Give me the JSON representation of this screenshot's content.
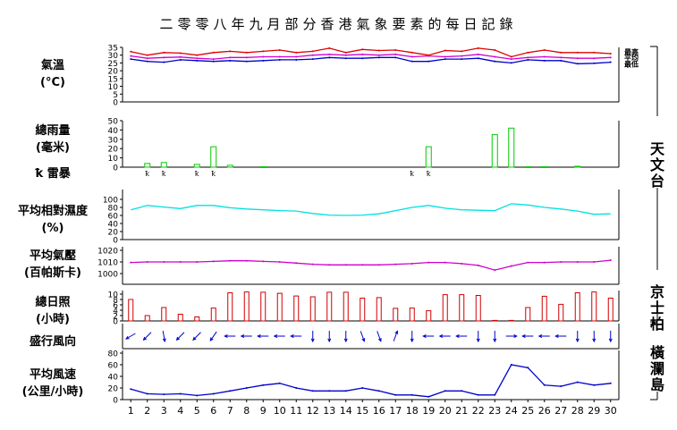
{
  "title": "二零零八年九月部分香港氣象要素的每日記錄",
  "labels": {
    "temp": [
      "氣溫",
      "(°C)"
    ],
    "rain": [
      "總雨量",
      "(毫米)"
    ],
    "thunder": "雷暴",
    "rh": [
      "平均相對濕度",
      "(%)"
    ],
    "pres": [
      "平均氣壓",
      "(百帕斯卡)"
    ],
    "sun": [
      "總日照",
      "(小時)"
    ],
    "wind_dir": "盛行風向",
    "wind_spd": [
      "平均風速",
      "(公里/小時)"
    ]
  },
  "stations": {
    "hko": "天文台",
    "kp": "京士柏",
    "wgl": "橫瀾島"
  },
  "legend": {
    "max": "最高",
    "mean": "平均",
    "min": "最低"
  },
  "thunder_symbol": "ꝁ",
  "colors": {
    "max": "#e00000",
    "mean": "#d000d0",
    "min": "#0000cc",
    "rain": "#00cc00",
    "rh": "#00e0e0",
    "pressure": "#cc00cc",
    "sunshine": "#d00000",
    "wind": "#0000cc",
    "axis": "#888888"
  },
  "chart_data": [
    {
      "type": "line",
      "name": "temperature",
      "x": [
        1,
        2,
        3,
        4,
        5,
        6,
        7,
        8,
        9,
        10,
        11,
        12,
        13,
        14,
        15,
        16,
        17,
        18,
        19,
        20,
        21,
        22,
        23,
        24,
        25,
        26,
        27,
        28,
        29,
        30
      ],
      "ylim": [
        0,
        35
      ],
      "yticks": [
        0,
        5,
        10,
        15,
        20,
        25,
        30,
        35
      ],
      "series": [
        {
          "name": "最高",
          "values": [
            32.3,
            30.0,
            31.7,
            31.3,
            30.0,
            31.7,
            32.5,
            31.7,
            32.5,
            33.3,
            31.7,
            32.5,
            34.5,
            31.7,
            33.7,
            33.0,
            33.3,
            31.7,
            30.0,
            33.0,
            32.5,
            34.5,
            33.3,
            29.0,
            31.7,
            33.3,
            31.7,
            31.7,
            31.7,
            31.0
          ]
        },
        {
          "name": "平均",
          "values": [
            29.5,
            28.0,
            28.5,
            28.8,
            28.0,
            27.5,
            28.5,
            28.5,
            29.0,
            29.0,
            29.0,
            30.0,
            30.5,
            30.0,
            30.5,
            30.0,
            30.5,
            29.0,
            29.5,
            29.0,
            29.5,
            30.5,
            29.0,
            27.5,
            28.5,
            29.0,
            28.5,
            28.0,
            28.0,
            28.5
          ]
        },
        {
          "name": "最低",
          "values": [
            27.5,
            26.0,
            25.5,
            27.0,
            26.5,
            26.0,
            26.5,
            26.0,
            26.5,
            27.0,
            27.0,
            27.5,
            28.5,
            28.0,
            28.0,
            28.5,
            28.5,
            26.0,
            26.0,
            27.5,
            27.5,
            28.0,
            26.0,
            25.0,
            27.0,
            26.5,
            26.5,
            24.5,
            24.8,
            25.5
          ]
        }
      ]
    },
    {
      "type": "bar",
      "name": "rainfall",
      "x": [
        1,
        2,
        3,
        4,
        5,
        6,
        7,
        8,
        9,
        10,
        11,
        12,
        13,
        14,
        15,
        16,
        17,
        18,
        19,
        20,
        21,
        22,
        23,
        24,
        25,
        26,
        27,
        28,
        29,
        30
      ],
      "ylim": [
        0,
        50
      ],
      "yticks": [
        0,
        10,
        20,
        30,
        40,
        50
      ],
      "values": [
        0,
        4,
        5,
        0,
        3,
        22,
        2,
        0,
        0.5,
        0,
        0,
        0,
        0,
        0,
        0,
        0,
        0,
        0,
        22,
        0,
        0,
        0,
        35,
        42,
        0.5,
        0.5,
        0,
        1,
        0,
        0
      ]
    },
    {
      "type": "scatter",
      "name": "thunderstorm_days",
      "days": [
        2,
        3,
        5,
        6,
        18,
        19
      ]
    },
    {
      "type": "line",
      "name": "mean_relative_humidity",
      "x": [
        1,
        2,
        3,
        4,
        5,
        6,
        7,
        8,
        9,
        10,
        11,
        12,
        13,
        14,
        15,
        16,
        17,
        18,
        19,
        20,
        21,
        22,
        23,
        24,
        25,
        26,
        27,
        28,
        29,
        30
      ],
      "ylim": [
        0,
        100
      ],
      "yticks": [
        0,
        20,
        40,
        60,
        80,
        100
      ],
      "values": [
        74,
        85,
        81,
        77,
        85,
        85,
        79,
        76,
        74,
        72,
        71,
        65,
        61,
        60,
        61,
        64,
        72,
        80,
        85,
        78,
        74,
        73,
        72,
        89,
        86,
        80,
        76,
        71,
        63,
        64
      ]
    },
    {
      "type": "line",
      "name": "mean_pressure",
      "x": [
        1,
        2,
        3,
        4,
        5,
        6,
        7,
        8,
        9,
        10,
        11,
        12,
        13,
        14,
        15,
        16,
        17,
        18,
        19,
        20,
        21,
        22,
        23,
        24,
        25,
        26,
        27,
        28,
        29,
        30
      ],
      "ylim": [
        1000,
        1020
      ],
      "ytick_labels": [
        "1000",
        "1010",
        "1020"
      ],
      "values": [
        1009.5,
        1010,
        1010,
        1010,
        1010,
        1010.5,
        1011,
        1011,
        1010.5,
        1010,
        1009,
        1008,
        1007.5,
        1007.5,
        1007.5,
        1007.5,
        1008,
        1008.5,
        1009.5,
        1009.5,
        1008.5,
        1007,
        1003,
        1006.5,
        1009.5,
        1009.5,
        1010,
        1010,
        1010,
        1011.5
      ]
    },
    {
      "type": "bar",
      "name": "total_sunshine",
      "x": [
        1,
        2,
        3,
        4,
        5,
        6,
        7,
        8,
        9,
        10,
        11,
        12,
        13,
        14,
        15,
        16,
        17,
        18,
        19,
        20,
        21,
        22,
        23,
        24,
        25,
        26,
        27,
        28,
        29,
        30
      ],
      "ylim": [
        0,
        12
      ],
      "yticks": [
        0,
        2,
        4,
        6,
        8,
        10
      ],
      "values": [
        8,
        2,
        5,
        2.5,
        1.5,
        4.8,
        10.5,
        10.8,
        10.7,
        10.3,
        9.3,
        9,
        10.7,
        10.7,
        8.5,
        8.7,
        4.7,
        4.8,
        3.8,
        9.8,
        9.8,
        9.5,
        0.2,
        0.2,
        5,
        9.2,
        6.2,
        10.5,
        10.8,
        8.5
      ]
    },
    {
      "type": "scatter",
      "name": "prevailing_wind_direction",
      "directions_deg": [
        60,
        45,
        350,
        45,
        45,
        35,
        90,
        90,
        90,
        90,
        90,
        0,
        0,
        0,
        340,
        340,
        200,
        0,
        90,
        90,
        90,
        0,
        0,
        270,
        90,
        90,
        90,
        0,
        0,
        0
      ],
      "note_days_with_double_arrows": [
        4
      ]
    },
    {
      "type": "line",
      "name": "mean_wind_speed",
      "x": [
        1,
        2,
        3,
        4,
        5,
        6,
        7,
        8,
        9,
        10,
        11,
        12,
        13,
        14,
        15,
        16,
        17,
        18,
        19,
        20,
        21,
        22,
        23,
        24,
        25,
        26,
        27,
        28,
        29,
        30
      ],
      "ylim": [
        0,
        80
      ],
      "yticks": [
        0,
        20,
        40,
        60,
        80
      ],
      "values": [
        18,
        10,
        9,
        10,
        7,
        10,
        15,
        20,
        25,
        28,
        20,
        15,
        15,
        15,
        20,
        15,
        8,
        8,
        5,
        15,
        15,
        8,
        8,
        60,
        55,
        25,
        23,
        30,
        25,
        28
      ]
    }
  ]
}
